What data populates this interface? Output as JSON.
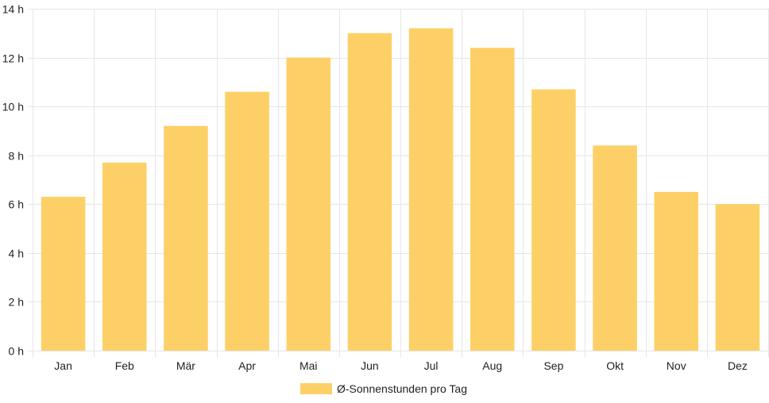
{
  "chart_data": {
    "type": "bar",
    "categories": [
      "Jan",
      "Feb",
      "Mär",
      "Apr",
      "Mai",
      "Jun",
      "Jul",
      "Aug",
      "Sep",
      "Okt",
      "Nov",
      "Dez"
    ],
    "series": [
      {
        "name": "Ø-Sonnenstunden pro Tag",
        "values": [
          6.3,
          7.7,
          9.2,
          10.6,
          12.0,
          13.0,
          13.2,
          12.4,
          10.7,
          8.4,
          6.5,
          6.0
        ]
      }
    ],
    "y_ticks": [
      "0 h",
      "2 h",
      "4 h",
      "6 h",
      "8 h",
      "10 h",
      "12 h",
      "14 h"
    ],
    "ylim": [
      0,
      14
    ],
    "grid": true,
    "legend_position": "bottom",
    "bar_color": "#fdd067",
    "grid_color": "#e6e6e6"
  }
}
